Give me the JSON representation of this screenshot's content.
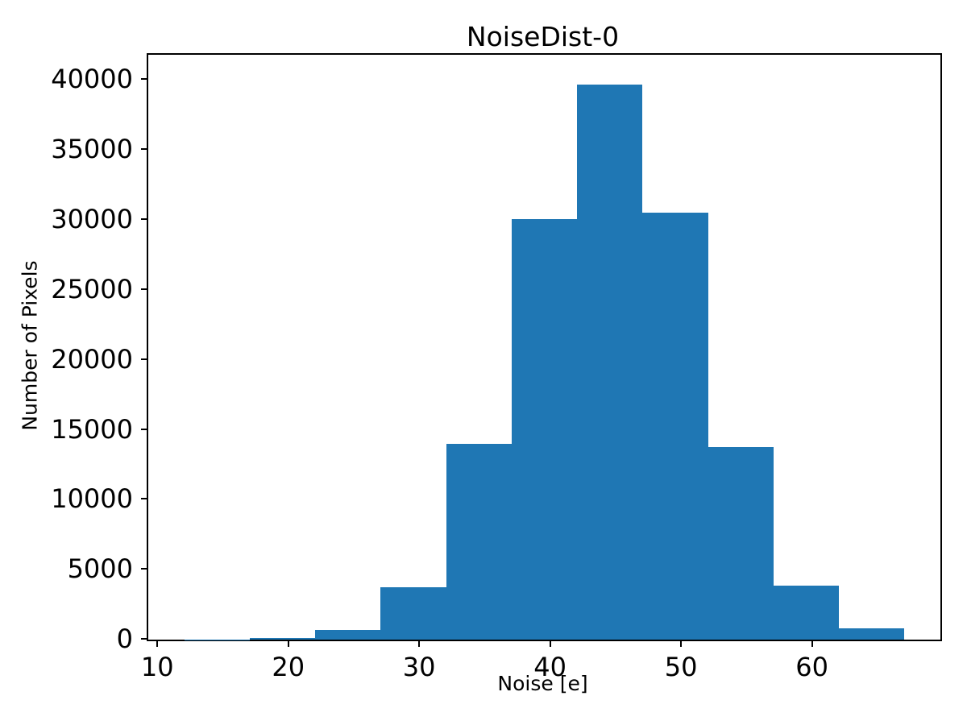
{
  "chart_data": {
    "type": "bar",
    "subtype": "histogram",
    "title": "NoiseDist-0",
    "xlabel": "Noise [e]",
    "ylabel": "Number of Pixels",
    "bin_edges": [
      12,
      17,
      22,
      27,
      32,
      37,
      42,
      47,
      52,
      57,
      62,
      67
    ],
    "counts": [
      30,
      105,
      680,
      3750,
      13980,
      30050,
      39650,
      30500,
      13780,
      3845,
      835
    ],
    "xlim": [
      9.25,
      69.75
    ],
    "ylim": [
      0,
      41800
    ],
    "xticks": [
      10,
      20,
      30,
      40,
      50,
      60
    ],
    "yticks": [
      0,
      5000,
      10000,
      15000,
      20000,
      25000,
      30000,
      35000,
      40000
    ],
    "bar_color": "#1f77b4",
    "axis_color": "#000000",
    "background_color": "#ffffff",
    "grid": false,
    "legend_position": "none"
  }
}
